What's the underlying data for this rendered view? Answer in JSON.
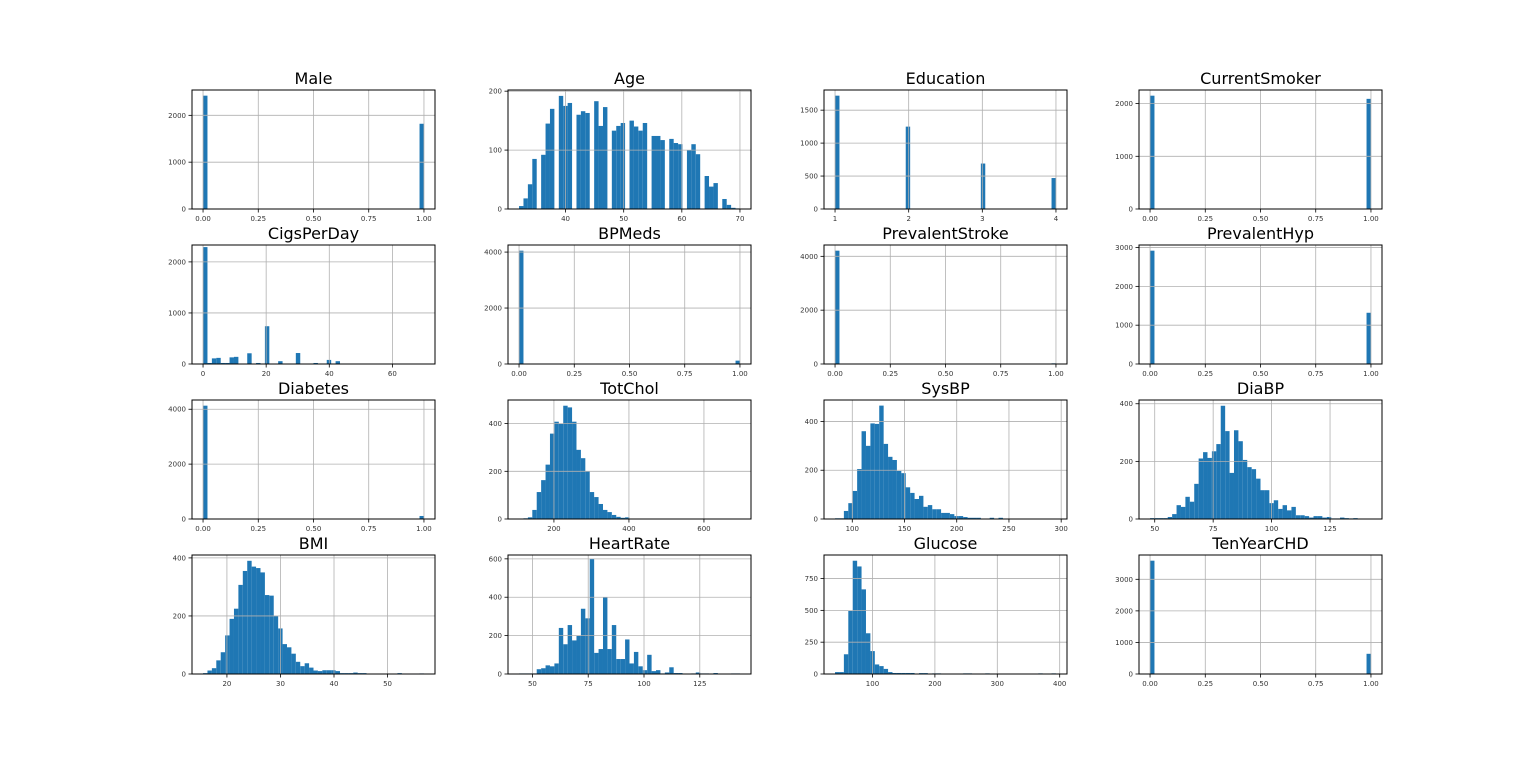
{
  "chart_data": [
    {
      "type": "bar",
      "title": "Male",
      "kind": "discrete",
      "x": [
        0,
        1
      ],
      "counts": [
        2420,
        1820
      ],
      "xticks": [
        "0.00",
        "0.25",
        "0.50",
        "0.75",
        "1.00"
      ],
      "xtick_values": [
        0,
        0.25,
        0.5,
        0.75,
        1
      ],
      "yticks": [
        0,
        1000,
        2000
      ],
      "ylim": [
        0,
        2541
      ],
      "grid": true
    },
    {
      "type": "bar",
      "title": "Age",
      "kind": "discrete",
      "x": [
        32,
        33,
        34,
        35,
        36,
        37,
        38,
        39,
        40,
        41,
        42,
        43,
        44,
        45,
        46,
        47,
        48,
        49,
        50,
        51,
        52,
        53,
        54,
        55,
        56,
        57,
        58,
        59,
        60,
        61,
        62,
        63,
        64,
        65,
        66,
        67,
        68,
        69,
        70
      ],
      "counts": [
        5,
        18,
        42,
        85,
        92,
        145,
        170,
        192,
        175,
        180,
        160,
        166,
        163,
        183,
        141,
        173,
        133,
        141,
        146,
        150,
        140,
        133,
        146,
        124,
        124,
        117,
        119,
        112,
        110,
        100,
        110,
        93,
        56,
        38,
        44,
        17,
        7,
        2,
        1
      ],
      "xticks": [
        "40",
        "50",
        "60",
        "70"
      ],
      "xtick_values": [
        40,
        50,
        60,
        70
      ],
      "yticks": [
        0,
        100,
        200
      ],
      "ylim": [
        0,
        202
      ],
      "grid": true
    },
    {
      "type": "bar",
      "title": "Education",
      "kind": "discrete",
      "x": [
        1,
        2,
        3,
        4
      ],
      "counts": [
        1720,
        1250,
        690,
        470
      ],
      "xticks": [
        "1",
        "2",
        "3",
        "4"
      ],
      "xtick_values": [
        1,
        2,
        3,
        4
      ],
      "yticks": [
        0,
        500,
        1000,
        1500
      ],
      "ylim": [
        0,
        1806
      ],
      "grid": true
    },
    {
      "type": "bar",
      "title": "CurrentSmoker",
      "kind": "discrete",
      "x": [
        0,
        1
      ],
      "counts": [
        2150,
        2090
      ],
      "xticks": [
        "0.00",
        "0.25",
        "0.50",
        "0.75",
        "1.00"
      ],
      "xtick_values": [
        0,
        0.25,
        0.5,
        0.75,
        1
      ],
      "yticks": [
        0,
        1000,
        2000
      ],
      "ylim": [
        0,
        2258
      ],
      "grid": true
    },
    {
      "type": "bar",
      "title": "CigsPerDay",
      "kind": "discrete",
      "x": [
        0,
        1,
        2,
        3,
        4,
        5,
        6,
        7,
        8,
        9,
        10,
        15,
        17,
        20,
        25,
        30,
        35,
        40,
        43,
        45,
        50,
        60,
        70
      ],
      "counts": [
        2220,
        70,
        20,
        100,
        10,
        120,
        20,
        10,
        10,
        130,
        140,
        210,
        20,
        740,
        55,
        215,
        20,
        80,
        55,
        3,
        6,
        5,
        2
      ],
      "xticks": [
        "0",
        "20",
        "40",
        "60"
      ],
      "xtick_values": [
        0,
        20,
        40,
        60
      ],
      "yticks": [
        0,
        1000,
        2000
      ],
      "ylim": [
        0,
        2331
      ],
      "grid": true
    },
    {
      "type": "bar",
      "title": "BPMeds",
      "kind": "discrete",
      "x": [
        0,
        1
      ],
      "counts": [
        4050,
        120
      ],
      "xticks": [
        "0.00",
        "0.25",
        "0.50",
        "0.75",
        "1.00"
      ],
      "xtick_values": [
        0,
        0.25,
        0.5,
        0.75,
        1
      ],
      "yticks": [
        0,
        2000,
        4000
      ],
      "ylim": [
        0,
        4253
      ],
      "grid": true
    },
    {
      "type": "bar",
      "title": "PrevalentStroke",
      "kind": "discrete",
      "x": [
        0,
        1
      ],
      "counts": [
        4210,
        25
      ],
      "xticks": [
        "0.00",
        "0.25",
        "0.50",
        "0.75",
        "1.00"
      ],
      "xtick_values": [
        0,
        0.25,
        0.5,
        0.75,
        1
      ],
      "yticks": [
        0,
        2000,
        4000
      ],
      "ylim": [
        0,
        4421
      ],
      "grid": true
    },
    {
      "type": "bar",
      "title": "PrevalentHyp",
      "kind": "discrete",
      "x": [
        0,
        1
      ],
      "counts": [
        2920,
        1320
      ],
      "xticks": [
        "0.00",
        "0.25",
        "0.50",
        "0.75",
        "1.00"
      ],
      "xtick_values": [
        0,
        0.25,
        0.5,
        0.75,
        1
      ],
      "yticks": [
        0,
        1000,
        2000,
        3000
      ],
      "ylim": [
        0,
        3066
      ],
      "grid": true
    },
    {
      "type": "bar",
      "title": "Diabetes",
      "kind": "discrete",
      "x": [
        0,
        1
      ],
      "counts": [
        4130,
        110
      ],
      "xticks": [
        "0.00",
        "0.25",
        "0.50",
        "0.75",
        "1.00"
      ],
      "xtick_values": [
        0,
        0.25,
        0.5,
        0.75,
        1
      ],
      "yticks": [
        0,
        2000,
        4000
      ],
      "ylim": [
        0,
        4337
      ],
      "grid": true
    },
    {
      "type": "bar",
      "title": "TotChol",
      "kind": "binned",
      "range": [
        107,
        696
      ],
      "counts": [
        2,
        3,
        7,
        38,
        113,
        163,
        228,
        358,
        408,
        400,
        475,
        468,
        408,
        290,
        255,
        200,
        113,
        92,
        63,
        38,
        29,
        17,
        9,
        5,
        7,
        2,
        1,
        1,
        0,
        0,
        0,
        0,
        0,
        0,
        0,
        0,
        0,
        0,
        0,
        0,
        0,
        0,
        0,
        0,
        0,
        0,
        0,
        0,
        0,
        1
      ],
      "xticks": [
        "200",
        "400",
        "600"
      ],
      "xtick_values": [
        200,
        400,
        600
      ],
      "yticks": [
        0,
        200,
        400
      ],
      "ylim": [
        0,
        499
      ],
      "grid": true
    },
    {
      "type": "bar",
      "title": "SysBP",
      "kind": "binned",
      "range": [
        83.5,
        295
      ],
      "counts": [
        3,
        3,
        33,
        65,
        115,
        205,
        360,
        300,
        392,
        390,
        465,
        308,
        255,
        242,
        197,
        188,
        130,
        107,
        82,
        95,
        50,
        57,
        40,
        40,
        25,
        25,
        20,
        12,
        12,
        8,
        5,
        5,
        5,
        2,
        1,
        5,
        1,
        5,
        1,
        0,
        0,
        0,
        0,
        1,
        0,
        0,
        0,
        0,
        0,
        1
      ],
      "xticks": [
        "100",
        "150",
        "200",
        "250",
        "300"
      ],
      "xtick_values": [
        100,
        150,
        200,
        250,
        300
      ],
      "yticks": [
        0,
        200,
        400
      ],
      "ylim": [
        0,
        488
      ],
      "grid": true
    },
    {
      "type": "bar",
      "title": "DiaBP",
      "kind": "binned",
      "range": [
        48,
        142.5
      ],
      "counts": [
        3,
        3,
        3,
        3,
        7,
        17,
        48,
        42,
        77,
        60,
        122,
        210,
        232,
        212,
        235,
        260,
        393,
        305,
        160,
        308,
        270,
        205,
        180,
        173,
        140,
        100,
        100,
        55,
        65,
        35,
        48,
        30,
        42,
        13,
        13,
        10,
        5,
        10,
        10,
        5,
        7,
        2,
        2,
        5,
        3,
        2,
        3,
        0,
        0,
        1
      ],
      "xticks": [
        "50",
        "75",
        "100",
        "125"
      ],
      "xtick_values": [
        50,
        75,
        100,
        125
      ],
      "yticks": [
        0,
        200,
        400
      ],
      "ylim": [
        0,
        413
      ],
      "grid": true
    },
    {
      "type": "bar",
      "title": "BMI",
      "kind": "binned",
      "range": [
        15.54,
        56.8
      ],
      "counts": [
        3,
        12,
        20,
        47,
        75,
        133,
        190,
        225,
        307,
        355,
        390,
        370,
        365,
        350,
        272,
        270,
        200,
        157,
        103,
        92,
        70,
        42,
        27,
        37,
        22,
        12,
        10,
        13,
        13,
        13,
        10,
        3,
        3,
        3,
        5,
        3,
        3,
        0,
        0,
        0,
        0,
        0,
        0,
        0,
        3,
        0,
        0,
        0,
        0,
        2
      ],
      "xticks": [
        "20",
        "30",
        "40",
        "50"
      ],
      "xtick_values": [
        20,
        30,
        40,
        50
      ],
      "yticks": [
        0,
        200,
        400
      ],
      "ylim": [
        0,
        410
      ],
      "grid": true
    },
    {
      "type": "bar",
      "title": "HeartRate",
      "kind": "binned",
      "range": [
        44,
        143
      ],
      "counts": [
        3,
        3,
        3,
        3,
        25,
        30,
        45,
        40,
        55,
        240,
        155,
        255,
        175,
        200,
        340,
        290,
        600,
        110,
        130,
        400,
        130,
        255,
        78,
        78,
        180,
        55,
        115,
        40,
        20,
        100,
        15,
        20,
        3,
        8,
        35,
        5,
        5,
        0,
        0,
        3,
        8,
        3,
        3,
        0,
        5,
        0,
        0,
        0,
        3,
        3
      ],
      "xticks": [
        "50",
        "75",
        "100",
        "125"
      ],
      "xtick_values": [
        50,
        75,
        100,
        125
      ],
      "yticks": [
        0,
        200,
        400,
        600
      ],
      "ylim": [
        0,
        620
      ],
      "grid": true
    },
    {
      "type": "bar",
      "title": "Glucose",
      "kind": "binned",
      "range": [
        40,
        394
      ],
      "counts": [
        15,
        15,
        155,
        495,
        890,
        845,
        665,
        320,
        180,
        75,
        62,
        40,
        15,
        8,
        8,
        8,
        8,
        8,
        2,
        7,
        7,
        2,
        5,
        5,
        2,
        3,
        0,
        0,
        0,
        5,
        5,
        0,
        3,
        0,
        5,
        0,
        0,
        0,
        0,
        0,
        0,
        0,
        0,
        0,
        0,
        0,
        5,
        0,
        0,
        5
      ],
      "xticks": [
        "100",
        "200",
        "300",
        "400"
      ],
      "xtick_values": [
        100,
        200,
        300,
        400
      ],
      "yticks": [
        0,
        250,
        500,
        750
      ],
      "ylim": [
        0,
        935
      ],
      "grid": true
    },
    {
      "type": "bar",
      "title": "TenYearCHD",
      "kind": "discrete",
      "x": [
        0,
        1
      ],
      "counts": [
        3590,
        640
      ],
      "xticks": [
        "0.00",
        "0.25",
        "0.50",
        "0.75",
        "1.00"
      ],
      "xtick_values": [
        0,
        0.25,
        0.5,
        0.75,
        1
      ],
      "yticks": [
        0,
        1000,
        2000,
        3000
      ],
      "ylim": [
        0,
        3770
      ],
      "grid": true
    }
  ],
  "style": {
    "bar_color": "#1f77b4",
    "grid_color": "#b0b0b0",
    "bins": 50
  }
}
